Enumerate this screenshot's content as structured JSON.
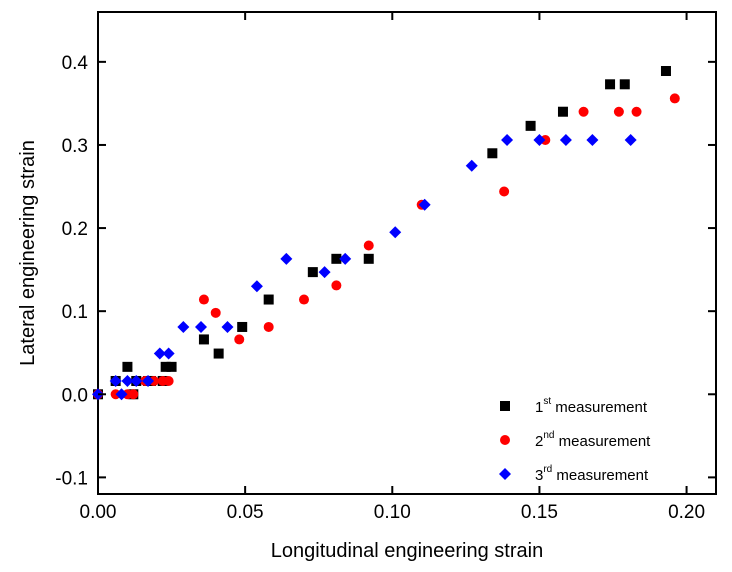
{
  "chart_data": {
    "type": "scatter",
    "xlabel": "Longitudinal engineering strain",
    "ylabel": "Lateral engineering strain",
    "xlim": [
      0.0,
      0.21
    ],
    "ylim": [
      -0.12,
      0.46
    ],
    "x_ticks": [
      0.0,
      0.05,
      0.1,
      0.15,
      0.2
    ],
    "x_tick_labels": [
      "0.00",
      "0.05",
      "0.10",
      "0.15",
      "0.20"
    ],
    "y_ticks": [
      -0.1,
      0.0,
      0.1,
      0.2,
      0.3,
      0.4
    ],
    "y_tick_labels": [
      "-0.1",
      "0.0",
      "0.1",
      "0.2",
      "0.3",
      "0.4"
    ],
    "grid": false,
    "legend_position": "bottom-right",
    "series": [
      {
        "name": "1st measurement",
        "label_main": "1",
        "label_sup": "st",
        "label_rest": " measurement",
        "marker": "square",
        "color": "#000000",
        "x": [
          0.0,
          0.006,
          0.01,
          0.012,
          0.013,
          0.017,
          0.018,
          0.022,
          0.023,
          0.025,
          0.036,
          0.041,
          0.049,
          0.058,
          0.073,
          0.081,
          0.092,
          0.134,
          0.147,
          0.158,
          0.174,
          0.179,
          0.193
        ],
        "y": [
          0.0,
          0.016,
          0.033,
          0.0,
          0.016,
          0.016,
          0.016,
          0.016,
          0.033,
          0.033,
          0.066,
          0.049,
          0.081,
          0.114,
          0.147,
          0.163,
          0.163,
          0.29,
          0.323,
          0.34,
          0.373,
          0.373,
          0.389
        ]
      },
      {
        "name": "2nd measurement",
        "label_main": "2",
        "label_sup": "nd",
        "label_rest": " measurement",
        "marker": "circle",
        "color": "#ff0000",
        "x": [
          0.0,
          0.006,
          0.01,
          0.012,
          0.016,
          0.019,
          0.022,
          0.024,
          0.036,
          0.04,
          0.048,
          0.058,
          0.07,
          0.081,
          0.092,
          0.11,
          0.138,
          0.152,
          0.165,
          0.177,
          0.183,
          0.196
        ],
        "y": [
          0.0,
          0.0,
          0.0,
          0.0,
          0.016,
          0.016,
          0.016,
          0.016,
          0.114,
          0.098,
          0.066,
          0.081,
          0.114,
          0.131,
          0.179,
          0.228,
          0.244,
          0.306,
          0.34,
          0.34,
          0.34,
          0.356
        ]
      },
      {
        "name": "3rd measurement",
        "label_main": "3",
        "label_sup": "rd",
        "label_rest": " measurement",
        "marker": "diamond",
        "color": "#0000ff",
        "x": [
          0.0,
          0.006,
          0.008,
          0.01,
          0.013,
          0.017,
          0.021,
          0.024,
          0.029,
          0.035,
          0.044,
          0.054,
          0.064,
          0.077,
          0.084,
          0.101,
          0.111,
          0.127,
          0.139,
          0.15,
          0.159,
          0.168,
          0.181
        ],
        "y": [
          0.0,
          0.016,
          0.0,
          0.016,
          0.016,
          0.016,
          0.049,
          0.049,
          0.081,
          0.081,
          0.081,
          0.13,
          0.163,
          0.147,
          0.163,
          0.195,
          0.228,
          0.275,
          0.306,
          0.306,
          0.306,
          0.306,
          0.306
        ]
      }
    ]
  }
}
